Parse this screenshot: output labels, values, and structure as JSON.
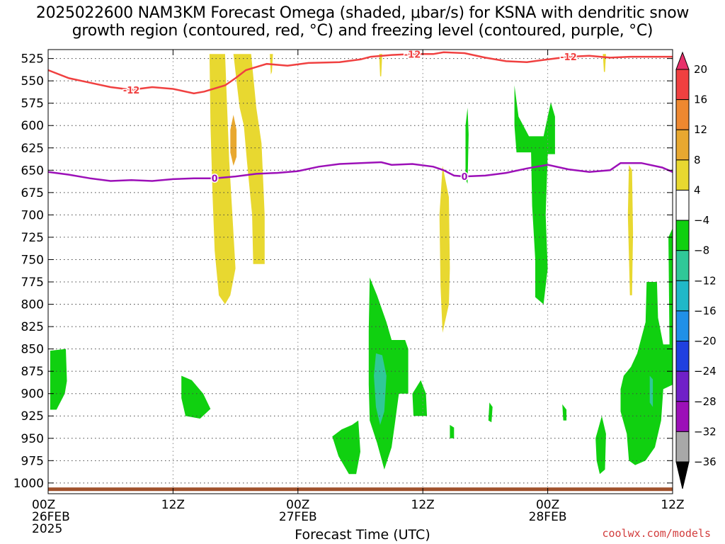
{
  "title_line1": "2025022600 NAM3KM Forecast Omega (shaded, μbar/s) for KSNA with dendritic snow",
  "title_line2": "growth region (contoured, red, °C) and freezing level (contoured, purple, °C)",
  "credit": "coolwx.com/models",
  "chart_data": {
    "type": "heatmap",
    "xlabel": "Forecast Time (UTC)",
    "ylabel": "",
    "x_range_hours": [
      0,
      60
    ],
    "y_levels_hpa": [
      525,
      550,
      575,
      600,
      625,
      650,
      675,
      700,
      725,
      750,
      775,
      800,
      825,
      850,
      875,
      900,
      925,
      950,
      975,
      1000
    ],
    "y_range_hpa": [
      515,
      1012
    ],
    "x_ticks": [
      {
        "hour": 0,
        "lines": [
          "00Z",
          "26FEB",
          "2025"
        ]
      },
      {
        "hour": 12,
        "lines": [
          "12Z"
        ]
      },
      {
        "hour": 24,
        "lines": [
          "00Z",
          "27FEB"
        ]
      },
      {
        "hour": 36,
        "lines": [
          "12Z"
        ]
      },
      {
        "hour": 48,
        "lines": [
          "00Z",
          "28FEB"
        ]
      },
      {
        "hour": 60,
        "lines": [
          "12Z"
        ]
      }
    ],
    "grid": true,
    "colorbar": {
      "levels": [
        20,
        16,
        12,
        8,
        4,
        -4,
        -8,
        -12,
        -16,
        -20,
        -24,
        -28,
        -32,
        -36
      ],
      "bins": [
        {
          "color": "#e8306a",
          "label": "> 20"
        },
        {
          "color": "#f04040",
          "label": "16 to 20"
        },
        {
          "color": "#ee8830",
          "label": "12 to 16"
        },
        {
          "color": "#e8a830",
          "label": "8 to 12"
        },
        {
          "color": "#e8d830",
          "label": "4 to 8"
        },
        {
          "color": "#ffffff",
          "label": "-4 to 4"
        },
        {
          "color": "#10d010",
          "label": "-8 to -4"
        },
        {
          "color": "#30c898",
          "label": "-12 to -8"
        },
        {
          "color": "#20b8c8",
          "label": "-16 to -12"
        },
        {
          "color": "#2090e8",
          "label": "-20 to -16"
        },
        {
          "color": "#2040e0",
          "label": "-24 to -20"
        },
        {
          "color": "#7020c8",
          "label": "-28 to -24"
        },
        {
          "color": "#9c10b8",
          "label": "-32 to -28"
        },
        {
          "color": "#a8a8a8",
          "label": "-36 to -32"
        },
        {
          "color": "#000000",
          "label": "< -36"
        }
      ]
    },
    "contours": [
      {
        "field": "temperature",
        "level": -12,
        "color": "#f04040",
        "label": "-12",
        "points": [
          [
            0,
            538
          ],
          [
            2,
            547
          ],
          [
            4,
            552
          ],
          [
            6,
            557
          ],
          [
            8,
            560
          ],
          [
            10,
            557
          ],
          [
            12,
            559
          ],
          [
            14,
            564
          ],
          [
            15,
            562
          ],
          [
            17,
            555
          ],
          [
            18,
            547
          ],
          [
            19,
            538
          ],
          [
            21,
            531
          ],
          [
            23,
            533
          ],
          [
            25,
            530
          ],
          [
            28,
            529
          ],
          [
            30,
            526
          ],
          [
            31,
            523
          ],
          [
            33,
            521
          ],
          [
            35,
            520
          ],
          [
            37,
            520
          ],
          [
            38,
            518
          ],
          [
            40,
            519
          ],
          [
            42,
            524
          ],
          [
            44,
            528
          ],
          [
            46,
            529
          ],
          [
            48,
            526
          ],
          [
            50,
            523
          ],
          [
            52,
            522
          ],
          [
            54,
            524
          ],
          [
            56,
            523
          ],
          [
            58,
            523
          ],
          [
            60,
            523
          ]
        ]
      },
      {
        "field": "temperature",
        "level": 0,
        "color": "#9c10b8",
        "label": "0",
        "points": [
          [
            0,
            652
          ],
          [
            2,
            655
          ],
          [
            4,
            659
          ],
          [
            6,
            662
          ],
          [
            8,
            661
          ],
          [
            10,
            662
          ],
          [
            12,
            660
          ],
          [
            14,
            659
          ],
          [
            16,
            659
          ],
          [
            18,
            657
          ],
          [
            20,
            654
          ],
          [
            22,
            653
          ],
          [
            24,
            651
          ],
          [
            26,
            646
          ],
          [
            28,
            643
          ],
          [
            30,
            642
          ],
          [
            32,
            641
          ],
          [
            33,
            644
          ],
          [
            35,
            643
          ],
          [
            37,
            646
          ],
          [
            38,
            650
          ],
          [
            39,
            656
          ],
          [
            40,
            657
          ],
          [
            42,
            656
          ],
          [
            44,
            653
          ],
          [
            46,
            648
          ],
          [
            48,
            644
          ],
          [
            50,
            649
          ],
          [
            52,
            652
          ],
          [
            54,
            650
          ],
          [
            55,
            642
          ],
          [
            57,
            642
          ],
          [
            59,
            647
          ],
          [
            60,
            652
          ]
        ]
      }
    ],
    "omega_regions": [
      {
        "value_bin": "4 to 8",
        "points": [
          [
            15.5,
            520
          ],
          [
            17,
            520
          ],
          [
            17.2,
            580
          ],
          [
            17.4,
            640
          ],
          [
            17.8,
            720
          ],
          [
            18,
            760
          ],
          [
            17.5,
            790
          ],
          [
            17.0,
            800
          ],
          [
            16.4,
            790
          ],
          [
            16.0,
            740
          ],
          [
            15.8,
            680
          ],
          [
            15.6,
            600
          ]
        ]
      },
      {
        "value_bin": "4 to 8",
        "points": [
          [
            17.8,
            520
          ],
          [
            19.5,
            520
          ],
          [
            20,
            580
          ],
          [
            20.5,
            620
          ],
          [
            20.8,
            700
          ],
          [
            20.8,
            755
          ],
          [
            19.7,
            755
          ],
          [
            19.6,
            700
          ],
          [
            19.1,
            640
          ],
          [
            18.8,
            600
          ],
          [
            18.4,
            580
          ],
          [
            18.2,
            560
          ]
        ]
      },
      {
        "value_bin": "8 to 12",
        "points": [
          [
            17.8,
            588
          ],
          [
            18.1,
            605
          ],
          [
            18.1,
            635
          ],
          [
            17.8,
            645
          ],
          [
            17.5,
            630
          ],
          [
            17.5,
            605
          ]
        ]
      },
      {
        "value_bin": "4 to 8",
        "points": [
          [
            21.3,
            520
          ],
          [
            21.6,
            520
          ],
          [
            21.5,
            540
          ],
          [
            21.4,
            543
          ]
        ]
      },
      {
        "value_bin": "4 to 8",
        "points": [
          [
            31.8,
            520
          ],
          [
            32.1,
            520
          ],
          [
            32.0,
            545
          ],
          [
            31.9,
            545
          ]
        ]
      },
      {
        "value_bin": "4 to 8",
        "points": [
          [
            53.3,
            520
          ],
          [
            53.6,
            520
          ],
          [
            53.5,
            540
          ],
          [
            53.4,
            540
          ]
        ]
      },
      {
        "value_bin": "4 to 8",
        "points": [
          [
            37.9,
            645
          ],
          [
            38.5,
            680
          ],
          [
            38.6,
            760
          ],
          [
            38.5,
            800
          ],
          [
            37.9,
            832
          ],
          [
            37.7,
            780
          ],
          [
            37.6,
            700
          ]
        ]
      },
      {
        "value_bin": "4 to 8",
        "points": [
          [
            55.8,
            644
          ],
          [
            56.1,
            650
          ],
          [
            56.2,
            720
          ],
          [
            56.1,
            790
          ],
          [
            55.9,
            790
          ],
          [
            55.7,
            700
          ]
        ]
      },
      {
        "value_bin": "-8 to -4",
        "points": [
          [
            44.8,
            555
          ],
          [
            45.2,
            590
          ],
          [
            46.2,
            612
          ],
          [
            47.6,
            612
          ],
          [
            48.3,
            574
          ],
          [
            48.7,
            590
          ],
          [
            48.7,
            632
          ],
          [
            48.0,
            632
          ],
          [
            47.8,
            700
          ],
          [
            48.0,
            760
          ],
          [
            47.6,
            800
          ],
          [
            46.8,
            792
          ],
          [
            46.8,
            750
          ],
          [
            46.5,
            690
          ],
          [
            46.4,
            630
          ],
          [
            45.0,
            630
          ],
          [
            44.8,
            600
          ]
        ]
      },
      {
        "value_bin": "-8 to -4",
        "points": [
          [
            40.3,
            580
          ],
          [
            40.4,
            610
          ],
          [
            40.3,
            665
          ],
          [
            40.1,
            660
          ],
          [
            40.1,
            600
          ]
        ]
      },
      {
        "value_bin": "-8 to -4",
        "points": [
          [
            0.2,
            852
          ],
          [
            1.7,
            850
          ],
          [
            1.8,
            886
          ],
          [
            1.6,
            900
          ],
          [
            0.8,
            918
          ],
          [
            0.2,
            918
          ]
        ]
      },
      {
        "value_bin": "-8 to -4",
        "points": [
          [
            12.8,
            880
          ],
          [
            13.8,
            885
          ],
          [
            14.9,
            900
          ],
          [
            15.6,
            917
          ],
          [
            14.6,
            928
          ],
          [
            13.2,
            925
          ],
          [
            12.8,
            905
          ]
        ]
      },
      {
        "value_bin": "-8 to -4",
        "points": [
          [
            27.3,
            948
          ],
          [
            28.2,
            940
          ],
          [
            29.2,
            935
          ],
          [
            29.8,
            930
          ],
          [
            30.0,
            965
          ],
          [
            29.6,
            990
          ],
          [
            28.9,
            990
          ],
          [
            27.9,
            970
          ]
        ]
      },
      {
        "value_bin": "-8 to -4",
        "points": [
          [
            30.9,
            770
          ],
          [
            31.6,
            790
          ],
          [
            32.5,
            820
          ],
          [
            33.0,
            840
          ],
          [
            34.3,
            840
          ],
          [
            34.6,
            850
          ],
          [
            34.6,
            900
          ],
          [
            33.7,
            900
          ],
          [
            33.3,
            935
          ],
          [
            33.0,
            960
          ],
          [
            32.3,
            985
          ],
          [
            31.6,
            955
          ],
          [
            30.9,
            930
          ],
          [
            30.8,
            890
          ],
          [
            30.8,
            830
          ]
        ]
      },
      {
        "value_bin": "-12 to -8",
        "points": [
          [
            31.5,
            855
          ],
          [
            32.1,
            857
          ],
          [
            32.5,
            880
          ],
          [
            32.3,
            920
          ],
          [
            31.9,
            935
          ],
          [
            31.5,
            915
          ],
          [
            31.3,
            880
          ]
        ]
      },
      {
        "value_bin": "-8 to -4",
        "points": [
          [
            35.0,
            900
          ],
          [
            35.8,
            885
          ],
          [
            36.3,
            900
          ],
          [
            36.4,
            925
          ],
          [
            35.1,
            925
          ]
        ]
      },
      {
        "value_bin": "-8 to -4",
        "points": [
          [
            38.6,
            935
          ],
          [
            39.0,
            938
          ],
          [
            39.0,
            950
          ],
          [
            38.6,
            950
          ]
        ]
      },
      {
        "value_bin": "-8 to -4",
        "points": [
          [
            42.4,
            910
          ],
          [
            42.7,
            915
          ],
          [
            42.6,
            932
          ],
          [
            42.3,
            930
          ]
        ]
      },
      {
        "value_bin": "-8 to -4",
        "points": [
          [
            49.4,
            912
          ],
          [
            49.8,
            918
          ],
          [
            49.8,
            930
          ],
          [
            49.5,
            930
          ]
        ]
      },
      {
        "value_bin": "-8 to -4",
        "points": [
          [
            53.2,
            925
          ],
          [
            53.6,
            945
          ],
          [
            53.5,
            985
          ],
          [
            53.0,
            990
          ],
          [
            52.7,
            975
          ],
          [
            52.6,
            950
          ]
        ]
      },
      {
        "value_bin": "-8 to -4",
        "points": [
          [
            55.3,
            880
          ],
          [
            56.0,
            870
          ],
          [
            56.6,
            855
          ],
          [
            57.4,
            820
          ],
          [
            57.5,
            775
          ],
          [
            58.5,
            775
          ],
          [
            58.6,
            815
          ],
          [
            59.1,
            845
          ],
          [
            60,
            845
          ],
          [
            60,
            890
          ],
          [
            59.1,
            895
          ],
          [
            58.9,
            930
          ],
          [
            58.3,
            960
          ],
          [
            57.4,
            975
          ],
          [
            56.4,
            980
          ],
          [
            55.8,
            975
          ],
          [
            55.6,
            945
          ],
          [
            55.0,
            920
          ],
          [
            55.0,
            895
          ]
        ]
      },
      {
        "value_bin": "-8 to -4",
        "points": [
          [
            59.6,
            725
          ],
          [
            60,
            715
          ],
          [
            60,
            850
          ],
          [
            59.7,
            845
          ]
        ]
      },
      {
        "value_bin": "-12 to -8",
        "points": [
          [
            57.8,
            880
          ],
          [
            58.1,
            884
          ],
          [
            58.1,
            915
          ],
          [
            57.8,
            910
          ]
        ]
      }
    ],
    "ground": {
      "color": "#a0522d",
      "top_hpa": 1005
    }
  }
}
